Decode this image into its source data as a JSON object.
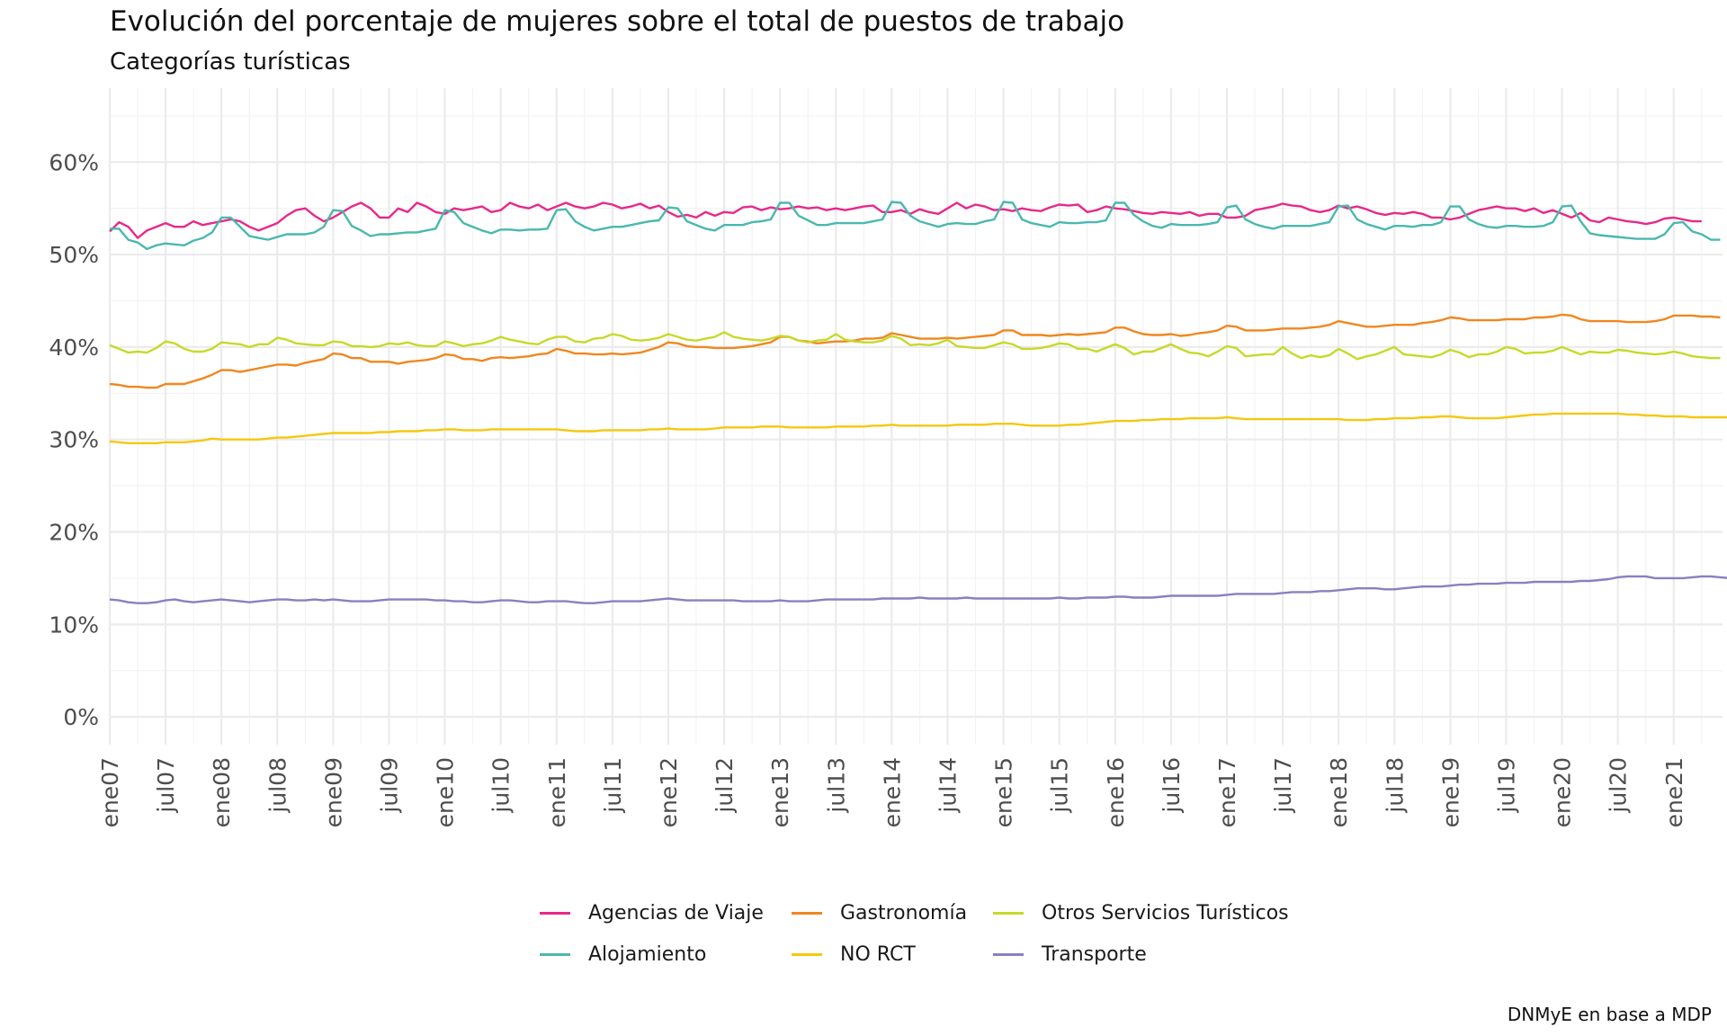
{
  "title": "Evolución del porcentaje de mujeres sobre el total de puestos de trabajo",
  "subtitle": "Categorías turísticas",
  "caption": "DNMyE en base a MDP",
  "chart_data": {
    "type": "line",
    "title": "Evolución del porcentaje de mujeres sobre el total de puestos de trabajo",
    "subtitle": "Categorías turísticas",
    "xlabel": "",
    "ylabel": "",
    "ylim": [
      -0.03,
      0.68
    ],
    "yticks": [
      0,
      0.1,
      0.2,
      0.3,
      0.4,
      0.5,
      0.6
    ],
    "ytick_labels": [
      "0%",
      "10%",
      "20%",
      "30%",
      "40%",
      "50%",
      "60%"
    ],
    "xticks": [
      "ene07",
      "jul07",
      "ene08",
      "jul08",
      "ene09",
      "jul09",
      "ene10",
      "jul10",
      "ene11",
      "jul11",
      "ene12",
      "jul12",
      "ene13",
      "jul13",
      "ene14",
      "jul14",
      "ene15",
      "jul15",
      "ene16",
      "jul16",
      "ene17",
      "jul17",
      "ene18",
      "jul18",
      "ene19",
      "jul19",
      "ene20",
      "jul20",
      "ene21"
    ],
    "x_start": "2007-01",
    "x_end": "2021-08",
    "grid": true,
    "legend_position": "bottom",
    "series": [
      {
        "name": "Agencias de Viaje",
        "color": "#e7298a",
        "values": [
          0.525,
          0.535,
          0.53,
          0.518,
          0.526,
          0.53,
          0.534,
          0.53,
          0.53,
          0.536,
          0.532,
          0.534,
          0.536,
          0.538,
          0.536,
          0.53,
          0.526,
          0.53,
          0.534,
          0.542,
          0.548,
          0.55,
          0.542,
          0.536,
          0.54,
          0.546,
          0.552,
          0.556,
          0.55,
          0.54,
          0.54,
          0.55,
          0.546,
          0.556,
          0.552,
          0.546,
          0.544,
          0.55,
          0.548,
          0.55,
          0.552,
          0.546,
          0.548,
          0.556,
          0.552,
          0.55,
          0.554,
          0.548,
          0.552,
          0.556,
          0.552,
          0.55,
          0.552,
          0.556,
          0.554,
          0.55,
          0.552,
          0.555,
          0.55,
          0.553,
          0.546,
          0.541,
          0.543,
          0.54,
          0.546,
          0.542,
          0.546,
          0.545,
          0.551,
          0.552,
          0.548,
          0.551,
          0.549,
          0.55,
          0.552,
          0.55,
          0.551,
          0.548,
          0.55,
          0.548,
          0.55,
          0.552,
          0.553,
          0.546,
          0.546,
          0.548,
          0.544,
          0.549,
          0.546,
          0.544,
          0.55,
          0.556,
          0.55,
          0.554,
          0.552,
          0.548,
          0.549,
          0.547,
          0.55,
          0.548,
          0.547,
          0.551,
          0.554,
          0.553,
          0.554,
          0.546,
          0.548,
          0.552,
          0.55,
          0.549,
          0.547,
          0.545,
          0.544,
          0.546,
          0.545,
          0.544,
          0.546,
          0.542,
          0.544,
          0.544,
          0.54,
          0.54,
          0.542,
          0.548,
          0.55,
          0.552,
          0.555,
          0.553,
          0.552,
          0.548,
          0.546,
          0.548,
          0.553,
          0.55,
          0.552,
          0.549,
          0.545,
          0.543,
          0.545,
          0.544,
          0.546,
          0.544,
          0.54,
          0.54,
          0.538,
          0.54,
          0.544,
          0.548,
          0.55,
          0.552,
          0.55,
          0.55,
          0.547,
          0.55,
          0.545,
          0.548,
          0.544,
          0.54,
          0.545,
          0.537,
          0.535,
          0.54,
          0.538,
          0.536,
          0.535,
          0.533,
          0.535,
          0.539,
          0.54,
          0.538,
          0.536,
          0.536
        ]
      },
      {
        "name": "Alojamiento",
        "color": "#4ab8ae",
        "values": [
          0.528,
          0.528,
          0.516,
          0.513,
          0.506,
          0.51,
          0.512,
          0.511,
          0.51,
          0.515,
          0.518,
          0.524,
          0.54,
          0.54,
          0.53,
          0.52,
          0.518,
          0.516,
          0.519,
          0.522,
          0.522,
          0.522,
          0.524,
          0.53,
          0.548,
          0.547,
          0.531,
          0.526,
          0.52,
          0.522,
          0.522,
          0.523,
          0.524,
          0.524,
          0.526,
          0.528,
          0.548,
          0.546,
          0.534,
          0.53,
          0.526,
          0.523,
          0.527,
          0.527,
          0.526,
          0.527,
          0.527,
          0.528,
          0.548,
          0.549,
          0.536,
          0.53,
          0.526,
          0.528,
          0.53,
          0.53,
          0.532,
          0.534,
          0.536,
          0.537,
          0.551,
          0.55,
          0.536,
          0.532,
          0.528,
          0.526,
          0.532,
          0.532,
          0.532,
          0.535,
          0.536,
          0.538,
          0.556,
          0.556,
          0.542,
          0.537,
          0.532,
          0.532,
          0.534,
          0.534,
          0.534,
          0.534,
          0.536,
          0.538,
          0.557,
          0.556,
          0.542,
          0.536,
          0.533,
          0.53,
          0.533,
          0.534,
          0.533,
          0.533,
          0.536,
          0.538,
          0.557,
          0.556,
          0.538,
          0.534,
          0.532,
          0.53,
          0.535,
          0.534,
          0.534,
          0.535,
          0.535,
          0.537,
          0.556,
          0.556,
          0.543,
          0.536,
          0.531,
          0.529,
          0.533,
          0.532,
          0.532,
          0.532,
          0.533,
          0.535,
          0.551,
          0.553,
          0.538,
          0.533,
          0.53,
          0.528,
          0.531,
          0.531,
          0.531,
          0.531,
          0.533,
          0.535,
          0.552,
          0.553,
          0.538,
          0.533,
          0.53,
          0.527,
          0.531,
          0.531,
          0.53,
          0.532,
          0.532,
          0.535,
          0.552,
          0.552,
          0.538,
          0.533,
          0.53,
          0.529,
          0.531,
          0.531,
          0.53,
          0.53,
          0.531,
          0.535,
          0.552,
          0.553,
          0.536,
          0.523,
          0.521,
          0.52,
          0.519,
          0.518,
          0.517,
          0.517,
          0.517,
          0.522,
          0.534,
          0.535,
          0.525,
          0.522,
          0.516,
          0.516
        ]
      },
      {
        "name": "Gastronomía",
        "color": "#f0871f",
        "values": [
          0.36,
          0.359,
          0.357,
          0.357,
          0.356,
          0.356,
          0.36,
          0.36,
          0.36,
          0.363,
          0.366,
          0.37,
          0.375,
          0.375,
          0.373,
          0.375,
          0.377,
          0.379,
          0.381,
          0.381,
          0.38,
          0.383,
          0.385,
          0.387,
          0.393,
          0.392,
          0.388,
          0.388,
          0.384,
          0.384,
          0.384,
          0.382,
          0.384,
          0.385,
          0.386,
          0.388,
          0.392,
          0.391,
          0.387,
          0.387,
          0.385,
          0.388,
          0.389,
          0.388,
          0.389,
          0.39,
          0.392,
          0.393,
          0.398,
          0.396,
          0.393,
          0.393,
          0.392,
          0.392,
          0.393,
          0.392,
          0.393,
          0.394,
          0.397,
          0.4,
          0.405,
          0.404,
          0.401,
          0.4,
          0.4,
          0.399,
          0.399,
          0.399,
          0.4,
          0.401,
          0.403,
          0.405,
          0.411,
          0.411,
          0.407,
          0.406,
          0.404,
          0.405,
          0.406,
          0.406,
          0.407,
          0.409,
          0.409,
          0.41,
          0.415,
          0.413,
          0.411,
          0.409,
          0.409,
          0.409,
          0.41,
          0.409,
          0.41,
          0.411,
          0.412,
          0.413,
          0.418,
          0.418,
          0.413,
          0.413,
          0.413,
          0.412,
          0.413,
          0.414,
          0.413,
          0.414,
          0.415,
          0.416,
          0.421,
          0.421,
          0.417,
          0.414,
          0.413,
          0.413,
          0.414,
          0.412,
          0.413,
          0.415,
          0.416,
          0.418,
          0.423,
          0.422,
          0.418,
          0.418,
          0.418,
          0.419,
          0.42,
          0.42,
          0.42,
          0.421,
          0.422,
          0.424,
          0.428,
          0.426,
          0.424,
          0.422,
          0.422,
          0.423,
          0.424,
          0.424,
          0.424,
          0.426,
          0.427,
          0.429,
          0.432,
          0.431,
          0.429,
          0.429,
          0.429,
          0.429,
          0.43,
          0.43,
          0.43,
          0.432,
          0.432,
          0.433,
          0.435,
          0.434,
          0.43,
          0.428,
          0.428,
          0.428,
          0.428,
          0.427,
          0.427,
          0.427,
          0.428,
          0.43,
          0.434,
          0.434,
          0.434,
          0.433,
          0.433,
          0.432
        ]
      },
      {
        "name": "NO RCT",
        "color": "#f5c80f",
        "values": [
          0.298,
          0.297,
          0.296,
          0.296,
          0.296,
          0.296,
          0.297,
          0.297,
          0.297,
          0.298,
          0.299,
          0.301,
          0.3,
          0.3,
          0.3,
          0.3,
          0.3,
          0.301,
          0.302,
          0.302,
          0.303,
          0.304,
          0.305,
          0.306,
          0.307,
          0.307,
          0.307,
          0.307,
          0.307,
          0.308,
          0.308,
          0.309,
          0.309,
          0.309,
          0.31,
          0.31,
          0.311,
          0.311,
          0.31,
          0.31,
          0.31,
          0.311,
          0.311,
          0.311,
          0.311,
          0.311,
          0.311,
          0.311,
          0.311,
          0.31,
          0.309,
          0.309,
          0.309,
          0.31,
          0.31,
          0.31,
          0.31,
          0.31,
          0.311,
          0.311,
          0.312,
          0.311,
          0.311,
          0.311,
          0.311,
          0.312,
          0.313,
          0.313,
          0.313,
          0.313,
          0.314,
          0.314,
          0.314,
          0.313,
          0.313,
          0.313,
          0.313,
          0.313,
          0.314,
          0.314,
          0.314,
          0.314,
          0.315,
          0.315,
          0.316,
          0.315,
          0.315,
          0.315,
          0.315,
          0.315,
          0.315,
          0.316,
          0.316,
          0.316,
          0.316,
          0.317,
          0.317,
          0.317,
          0.316,
          0.315,
          0.315,
          0.315,
          0.315,
          0.316,
          0.316,
          0.317,
          0.318,
          0.319,
          0.32,
          0.32,
          0.32,
          0.321,
          0.321,
          0.322,
          0.322,
          0.322,
          0.323,
          0.323,
          0.323,
          0.323,
          0.324,
          0.323,
          0.322,
          0.322,
          0.322,
          0.322,
          0.322,
          0.322,
          0.322,
          0.322,
          0.322,
          0.322,
          0.322,
          0.321,
          0.321,
          0.321,
          0.322,
          0.322,
          0.323,
          0.323,
          0.323,
          0.324,
          0.324,
          0.325,
          0.325,
          0.324,
          0.323,
          0.323,
          0.323,
          0.323,
          0.324,
          0.325,
          0.326,
          0.327,
          0.327,
          0.328,
          0.328,
          0.328,
          0.328,
          0.328,
          0.328,
          0.328,
          0.328,
          0.327,
          0.327,
          0.326,
          0.326,
          0.325,
          0.325,
          0.325,
          0.324,
          0.324,
          0.324,
          0.324,
          0.324,
          0.324
        ]
      },
      {
        "name": "Otros Servicios Turísticos",
        "color": "#c7d929",
        "values": [
          0.402,
          0.398,
          0.394,
          0.395,
          0.394,
          0.399,
          0.406,
          0.404,
          0.398,
          0.395,
          0.395,
          0.398,
          0.405,
          0.404,
          0.403,
          0.4,
          0.403,
          0.403,
          0.41,
          0.408,
          0.404,
          0.403,
          0.402,
          0.402,
          0.406,
          0.405,
          0.401,
          0.401,
          0.4,
          0.401,
          0.404,
          0.403,
          0.405,
          0.402,
          0.401,
          0.401,
          0.406,
          0.404,
          0.401,
          0.403,
          0.404,
          0.407,
          0.411,
          0.408,
          0.406,
          0.404,
          0.403,
          0.408,
          0.411,
          0.411,
          0.406,
          0.405,
          0.409,
          0.41,
          0.414,
          0.412,
          0.408,
          0.407,
          0.408,
          0.41,
          0.414,
          0.411,
          0.408,
          0.407,
          0.409,
          0.411,
          0.416,
          0.411,
          0.409,
          0.408,
          0.407,
          0.409,
          0.412,
          0.411,
          0.407,
          0.405,
          0.407,
          0.408,
          0.414,
          0.408,
          0.406,
          0.405,
          0.405,
          0.407,
          0.412,
          0.409,
          0.402,
          0.403,
          0.402,
          0.404,
          0.408,
          0.401,
          0.4,
          0.399,
          0.399,
          0.402,
          0.405,
          0.403,
          0.398,
          0.398,
          0.399,
          0.401,
          0.404,
          0.403,
          0.398,
          0.398,
          0.395,
          0.399,
          0.403,
          0.399,
          0.392,
          0.395,
          0.395,
          0.399,
          0.403,
          0.398,
          0.394,
          0.393,
          0.39,
          0.395,
          0.401,
          0.399,
          0.39,
          0.391,
          0.392,
          0.392,
          0.4,
          0.393,
          0.388,
          0.391,
          0.389,
          0.391,
          0.398,
          0.393,
          0.387,
          0.39,
          0.392,
          0.396,
          0.4,
          0.392,
          0.391,
          0.39,
          0.389,
          0.392,
          0.397,
          0.394,
          0.389,
          0.392,
          0.392,
          0.395,
          0.4,
          0.398,
          0.393,
          0.394,
          0.394,
          0.396,
          0.4,
          0.396,
          0.392,
          0.395,
          0.394,
          0.394,
          0.397,
          0.396,
          0.394,
          0.393,
          0.392,
          0.393,
          0.395,
          0.393,
          0.39,
          0.389,
          0.388,
          0.388
        ]
      },
      {
        "name": "Transporte",
        "color": "#8c7fbf",
        "values": [
          0.127,
          0.126,
          0.124,
          0.123,
          0.123,
          0.124,
          0.126,
          0.127,
          0.125,
          0.124,
          0.125,
          0.126,
          0.127,
          0.126,
          0.125,
          0.124,
          0.125,
          0.126,
          0.127,
          0.127,
          0.126,
          0.126,
          0.127,
          0.126,
          0.127,
          0.126,
          0.125,
          0.125,
          0.125,
          0.126,
          0.127,
          0.127,
          0.127,
          0.127,
          0.127,
          0.126,
          0.126,
          0.125,
          0.125,
          0.124,
          0.124,
          0.125,
          0.126,
          0.126,
          0.125,
          0.124,
          0.124,
          0.125,
          0.125,
          0.125,
          0.124,
          0.123,
          0.123,
          0.124,
          0.125,
          0.125,
          0.125,
          0.125,
          0.126,
          0.127,
          0.128,
          0.127,
          0.126,
          0.126,
          0.126,
          0.126,
          0.126,
          0.126,
          0.125,
          0.125,
          0.125,
          0.125,
          0.126,
          0.125,
          0.125,
          0.125,
          0.126,
          0.127,
          0.127,
          0.127,
          0.127,
          0.127,
          0.127,
          0.128,
          0.128,
          0.128,
          0.128,
          0.129,
          0.128,
          0.128,
          0.128,
          0.128,
          0.129,
          0.128,
          0.128,
          0.128,
          0.128,
          0.128,
          0.128,
          0.128,
          0.128,
          0.128,
          0.129,
          0.128,
          0.128,
          0.129,
          0.129,
          0.129,
          0.13,
          0.13,
          0.129,
          0.129,
          0.129,
          0.13,
          0.131,
          0.131,
          0.131,
          0.131,
          0.131,
          0.131,
          0.132,
          0.133,
          0.133,
          0.133,
          0.133,
          0.133,
          0.134,
          0.135,
          0.135,
          0.135,
          0.136,
          0.136,
          0.137,
          0.138,
          0.139,
          0.139,
          0.139,
          0.138,
          0.138,
          0.139,
          0.14,
          0.141,
          0.141,
          0.141,
          0.142,
          0.143,
          0.143,
          0.144,
          0.144,
          0.144,
          0.145,
          0.145,
          0.145,
          0.146,
          0.146,
          0.146,
          0.146,
          0.146,
          0.147,
          0.147,
          0.148,
          0.149,
          0.151,
          0.152,
          0.152,
          0.152,
          0.15,
          0.15,
          0.15,
          0.15,
          0.151,
          0.152,
          0.152,
          0.151,
          0.15,
          0.15,
          0.15,
          0.15
        ]
      }
    ]
  }
}
